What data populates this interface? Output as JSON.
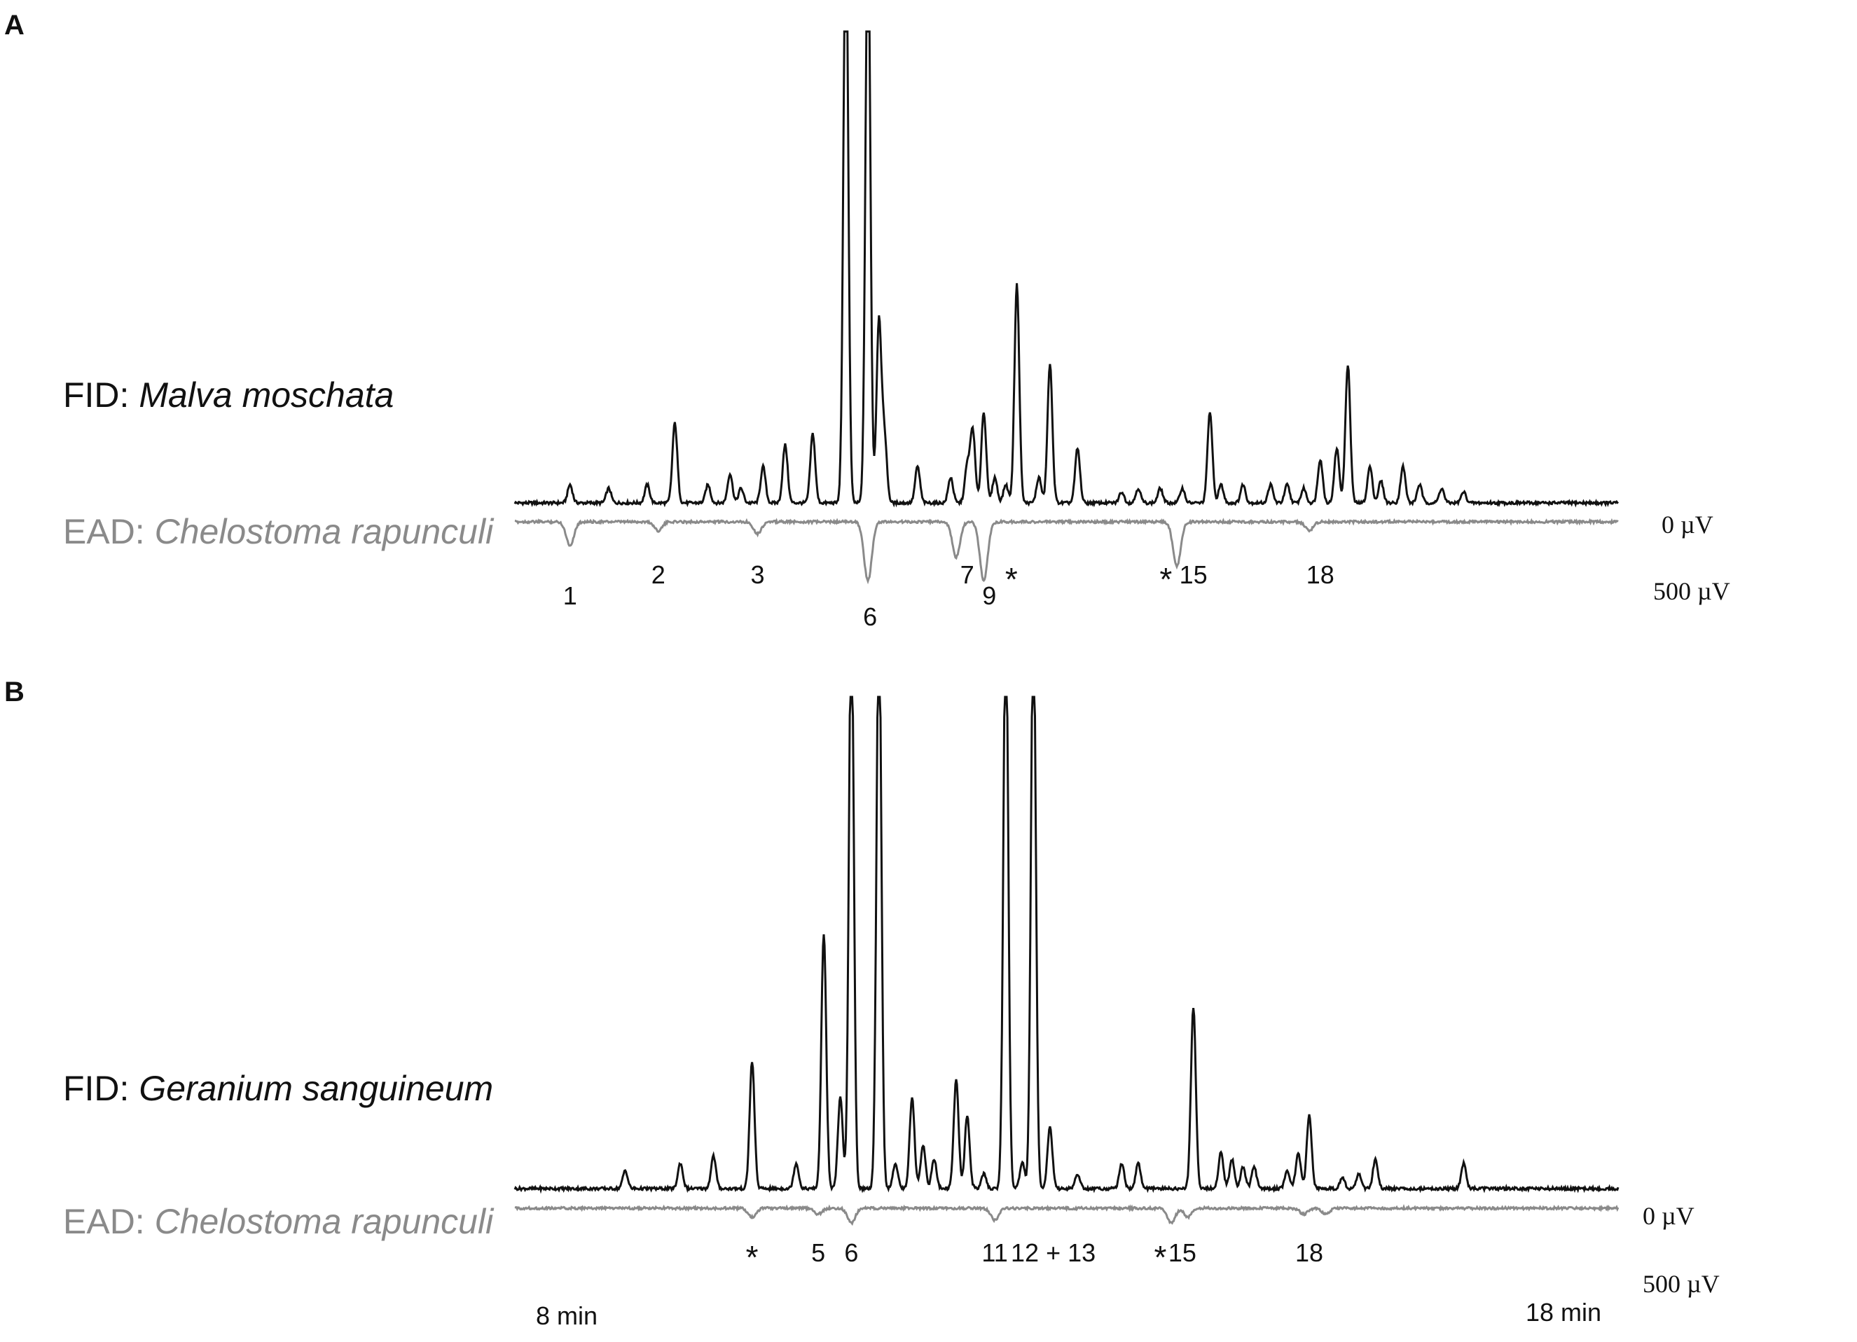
{
  "chart_data": {
    "type": "line",
    "x_unit": "min",
    "xlim": [
      8,
      18
    ],
    "x_tick_labels": [
      "8 min",
      "18 min"
    ],
    "panels": [
      {
        "letter": "A",
        "fid_prefix": "FID: ",
        "fid_species": "Malva moschata",
        "ead_prefix": "EAD: ",
        "ead_species": "Chelostoma rapunculi",
        "scale_top": "0 µV",
        "scale_bottom": "500 µV",
        "fid_peaks": [
          [
            8.5,
            0.05
          ],
          [
            8.85,
            0.04
          ],
          [
            9.2,
            0.05
          ],
          [
            9.45,
            0.22
          ],
          [
            9.75,
            0.05
          ],
          [
            9.95,
            0.08
          ],
          [
            10.05,
            0.04
          ],
          [
            10.25,
            0.1
          ],
          [
            10.45,
            0.16
          ],
          [
            10.7,
            0.19
          ],
          [
            11.0,
            1.6
          ],
          [
            11.2,
            1.6
          ],
          [
            11.3,
            0.5
          ],
          [
            11.35,
            0.18
          ],
          [
            11.65,
            0.1
          ],
          [
            11.95,
            0.07
          ],
          [
            12.1,
            0.1
          ],
          [
            12.15,
            0.2
          ],
          [
            12.25,
            0.25
          ],
          [
            12.35,
            0.07
          ],
          [
            12.45,
            0.05
          ],
          [
            12.55,
            0.6
          ],
          [
            12.75,
            0.07
          ],
          [
            12.85,
            0.38
          ],
          [
            13.1,
            0.15
          ],
          [
            13.5,
            0.03
          ],
          [
            13.65,
            0.04
          ],
          [
            13.85,
            0.04
          ],
          [
            14.05,
            0.04
          ],
          [
            14.3,
            0.25
          ],
          [
            14.4,
            0.05
          ],
          [
            14.6,
            0.05
          ],
          [
            14.85,
            0.05
          ],
          [
            15.0,
            0.05
          ],
          [
            15.15,
            0.04
          ],
          [
            15.3,
            0.12
          ],
          [
            15.45,
            0.15
          ],
          [
            15.55,
            0.38
          ],
          [
            15.75,
            0.1
          ],
          [
            15.85,
            0.06
          ],
          [
            16.05,
            0.1
          ],
          [
            16.2,
            0.05
          ],
          [
            16.4,
            0.04
          ],
          [
            16.6,
            0.03
          ]
        ],
        "ead_dips": [
          [
            8.5,
            0.08
          ],
          [
            9.3,
            0.03
          ],
          [
            10.2,
            0.04
          ],
          [
            11.2,
            0.2
          ],
          [
            12.0,
            0.12
          ],
          [
            12.25,
            0.2
          ],
          [
            14.0,
            0.15
          ],
          [
            15.2,
            0.03
          ]
        ],
        "ead_labels": [
          {
            "text": "1",
            "x": 8.5
          },
          {
            "text": "2",
            "x": 9.3
          },
          {
            "text": "3",
            "x": 10.2
          },
          {
            "text": "6",
            "x": 11.22
          },
          {
            "text": "7",
            "x": 12.1
          },
          {
            "text": "9",
            "x": 12.3
          },
          {
            "text": "*",
            "x": 12.5
          },
          {
            "text": "*",
            "x": 13.9
          },
          {
            "text": "15",
            "x": 14.15
          },
          {
            "text": "18",
            "x": 15.3
          }
        ]
      },
      {
        "letter": "B",
        "fid_prefix": "FID: ",
        "fid_species": "Geranium sanguineum",
        "ead_prefix": "EAD: ",
        "ead_species": "Chelostoma rapunculi",
        "scale_top": "0 µV",
        "scale_bottom": "500 µV",
        "fid_peaks": [
          [
            9.0,
            0.05
          ],
          [
            9.5,
            0.07
          ],
          [
            9.8,
            0.09
          ],
          [
            10.15,
            0.35
          ],
          [
            10.55,
            0.07
          ],
          [
            10.8,
            0.7
          ],
          [
            10.95,
            0.25
          ],
          [
            11.05,
            1.6
          ],
          [
            11.3,
            1.6
          ],
          [
            11.45,
            0.07
          ],
          [
            11.6,
            0.25
          ],
          [
            11.7,
            0.12
          ],
          [
            11.8,
            0.08
          ],
          [
            12.0,
            0.3
          ],
          [
            12.1,
            0.2
          ],
          [
            12.25,
            0.04
          ],
          [
            12.45,
            1.6
          ],
          [
            12.6,
            0.07
          ],
          [
            12.7,
            1.6
          ],
          [
            12.85,
            0.17
          ],
          [
            13.1,
            0.04
          ],
          [
            13.5,
            0.07
          ],
          [
            13.65,
            0.07
          ],
          [
            14.15,
            0.5
          ],
          [
            14.4,
            0.1
          ],
          [
            14.5,
            0.08
          ],
          [
            14.6,
            0.06
          ],
          [
            14.7,
            0.06
          ],
          [
            15.0,
            0.05
          ],
          [
            15.1,
            0.1
          ],
          [
            15.2,
            0.2
          ],
          [
            15.5,
            0.03
          ],
          [
            15.65,
            0.04
          ],
          [
            15.8,
            0.08
          ],
          [
            16.6,
            0.07
          ]
        ],
        "ead_dips": [
          [
            10.15,
            0.03
          ],
          [
            10.75,
            0.02
          ],
          [
            11.05,
            0.05
          ],
          [
            12.35,
            0.04
          ],
          [
            13.95,
            0.05
          ],
          [
            14.1,
            0.03
          ],
          [
            15.15,
            0.02
          ],
          [
            15.35,
            0.02
          ]
        ],
        "ead_labels": [
          {
            "text": "*",
            "x": 10.15
          },
          {
            "text": "5",
            "x": 10.75
          },
          {
            "text": "6",
            "x": 11.05
          },
          {
            "text": "11",
            "x": 12.35
          },
          {
            "text": "12 + 13",
            "x": 12.88
          },
          {
            "text": "*",
            "x": 13.85
          },
          {
            "text": "15",
            "x": 14.05
          },
          {
            "text": "18",
            "x": 15.2
          }
        ]
      }
    ]
  }
}
